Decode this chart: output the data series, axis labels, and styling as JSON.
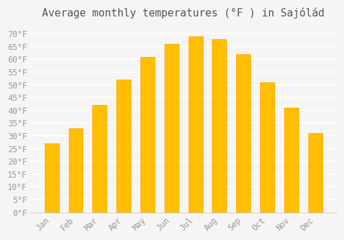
{
  "title": "Average monthly temperatures (°F ) in Sajólád",
  "months": [
    "Jan",
    "Feb",
    "Mar",
    "Apr",
    "May",
    "Jun",
    "Jul",
    "Aug",
    "Sep",
    "Oct",
    "Nov",
    "Dec"
  ],
  "values": [
    27,
    33,
    42,
    52,
    61,
    66,
    69,
    68,
    62,
    51,
    41,
    31
  ],
  "bar_color": "#FFBE00",
  "bar_edge_color": "#FFA500",
  "background_color": "#F5F5F5",
  "grid_color": "#FFFFFF",
  "text_color": "#999999",
  "title_color": "#555555",
  "ylim": [
    0,
    73
  ],
  "yticks": [
    0,
    5,
    10,
    15,
    20,
    25,
    30,
    35,
    40,
    45,
    50,
    55,
    60,
    65,
    70
  ],
  "title_fontsize": 11,
  "tick_fontsize": 8.5
}
